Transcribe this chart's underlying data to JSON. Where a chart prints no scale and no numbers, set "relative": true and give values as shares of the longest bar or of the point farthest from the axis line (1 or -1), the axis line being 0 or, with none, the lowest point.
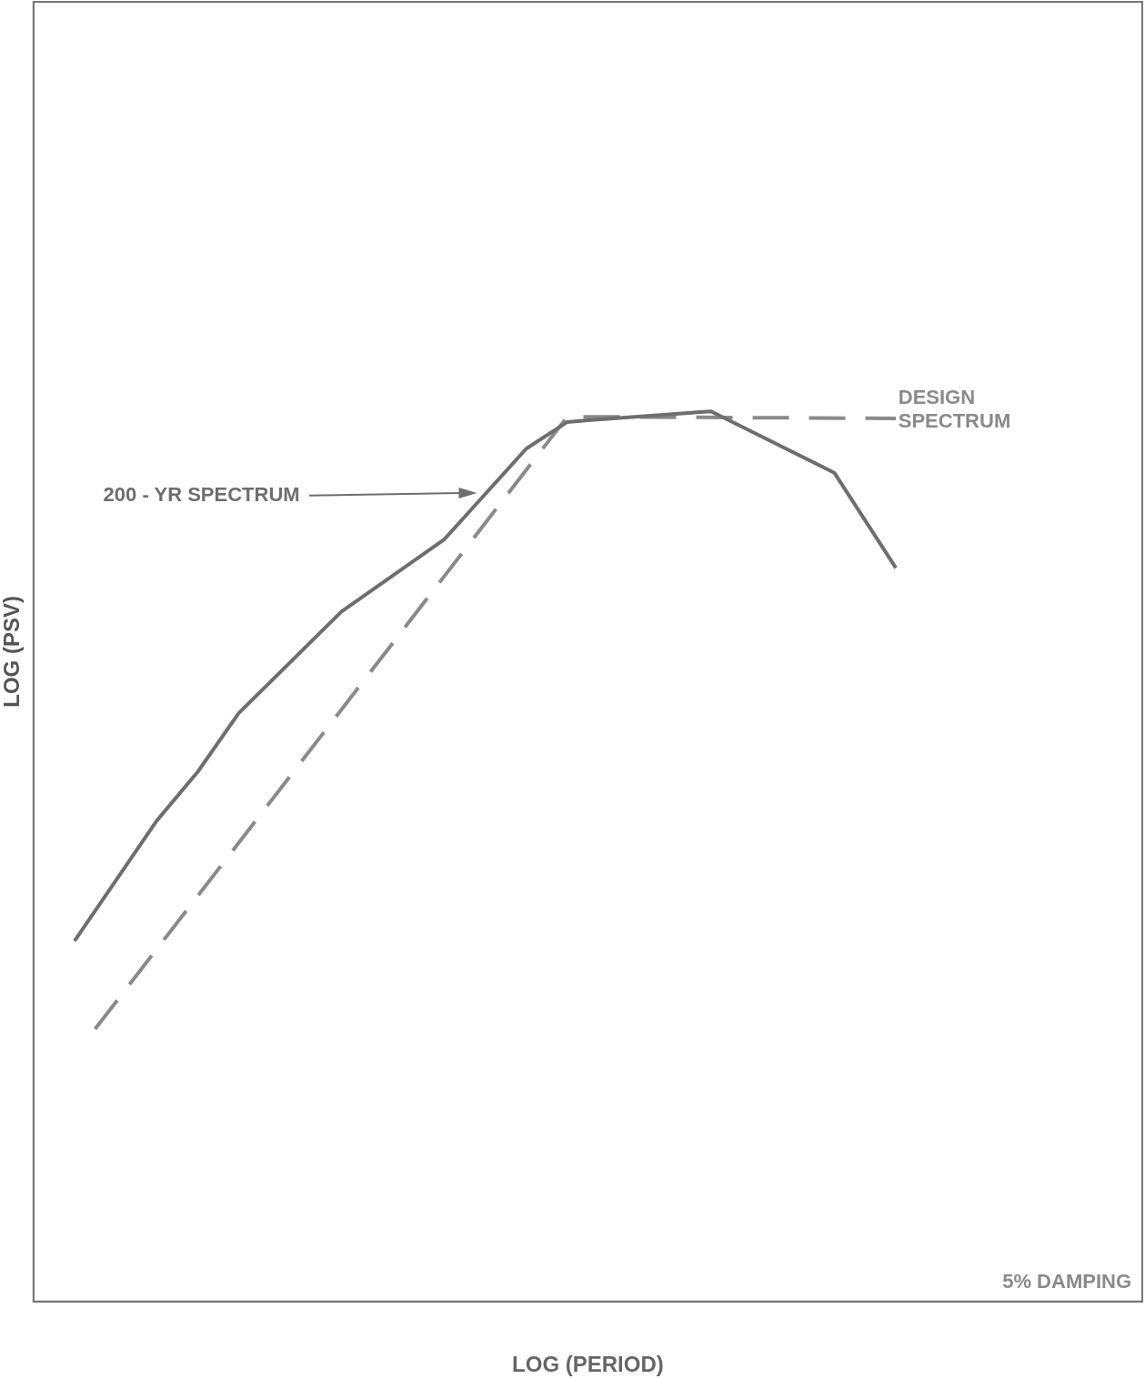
{
  "chart_data": {
    "type": "line",
    "relative": true,
    "xlabel": "LOG (PERIOD)",
    "ylabel": "LOG (PSV)",
    "categories": [
      null,
      null,
      null,
      null,
      null,
      null,
      null,
      null,
      null,
      null,
      null,
      null,
      null,
      null,
      null,
      null,
      null,
      null,
      null,
      null,
      null,
      null,
      null,
      null,
      null,
      null,
      null,
      null,
      null,
      null,
      null,
      null,
      null,
      null,
      null,
      null,
      null,
      null,
      null,
      null,
      null,
      null,
      null,
      null,
      null,
      null,
      null,
      null,
      null,
      null,
      null,
      null,
      null,
      null,
      null
    ],
    "series": [
      {
        "name": "200 - YR SPECTRUM",
        "color": "#6e6e6e",
        "line_style": "solid",
        "values": [
          null,
          null,
          0.405,
          null,
          null,
          null,
          0.54,
          null,
          0.595,
          null,
          0.661,
          null,
          null,
          null,
          null,
          0.775,
          null,
          null,
          null,
          null,
          0.856,
          null,
          null,
          null,
          0.958,
          null,
          0.988,
          0.99,
          null,
          null,
          null,
          null,
          null,
          1.0,
          null,
          null,
          null,
          null,
          null,
          0.931,
          null,
          null,
          0.824,
          null,
          null,
          null,
          null,
          null,
          null,
          null,
          null,
          null,
          null,
          null,
          null
        ]
      },
      {
        "name": "DESIGN SPECTRUM",
        "color": "#8a8a8a",
        "line_style": "dashed",
        "values": [
          null,
          null,
          null,
          0.306,
          null,
          null,
          null,
          null,
          null,
          null,
          null,
          null,
          null,
          null,
          null,
          null,
          null,
          null,
          null,
          null,
          null,
          null,
          null,
          null,
          null,
          null,
          0.994,
          null,
          null,
          null,
          null,
          null,
          null,
          null,
          null,
          null,
          null,
          null,
          null,
          null,
          null,
          null,
          0.992,
          null,
          null,
          null,
          null,
          null,
          null,
          null,
          null,
          null,
          null,
          null,
          null
        ]
      }
    ],
    "annotations": [
      "5% DAMPING"
    ],
    "grid": false,
    "legend": false,
    "marker": "none"
  }
}
